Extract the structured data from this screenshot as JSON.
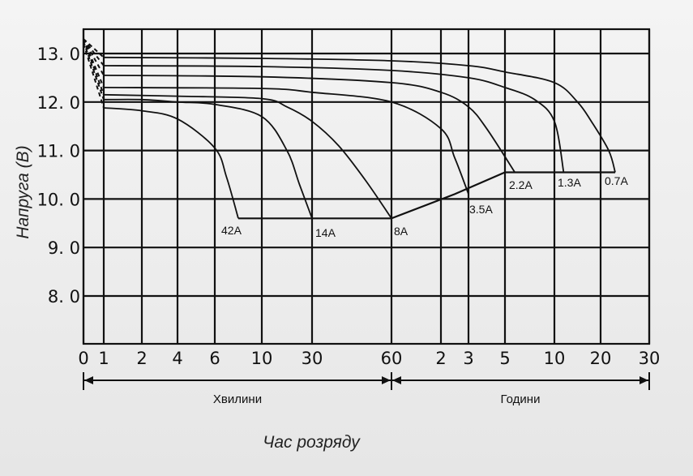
{
  "chart_data": {
    "type": "line",
    "ylabel": "Напруга (В)",
    "xlabel": "Час розряду",
    "ylim": [
      7.0,
      13.5
    ],
    "y_ticks": [
      "13. 0",
      "12. 0",
      "11. 0",
      "10. 0",
      "9. 0",
      "8. 0"
    ],
    "x_ticks": [
      "0",
      "1",
      "2",
      "4",
      "6",
      "10",
      "30",
      "60",
      "2",
      "3",
      "5",
      "10",
      "20",
      "30"
    ],
    "x_segments": [
      {
        "label": "Хвилини",
        "unit": "min",
        "range": [
          0,
          60
        ]
      },
      {
        "label": "Години",
        "unit": "h",
        "range": [
          1,
          30
        ]
      }
    ],
    "grid": true,
    "series": [
      {
        "name": "42A",
        "points": [
          [
            0,
            13.2
          ],
          [
            1,
            11.88
          ],
          [
            2,
            11.82
          ],
          [
            4,
            11.65
          ],
          [
            6,
            11.05
          ],
          [
            7,
            10.45
          ],
          [
            8,
            9.6
          ]
        ],
        "cutoff": 9.6
      },
      {
        "name": "14A",
        "points": [
          [
            0,
            13.25
          ],
          [
            1,
            12.05
          ],
          [
            2,
            12.05
          ],
          [
            4,
            12.0
          ],
          [
            6,
            11.95
          ],
          [
            10,
            11.7
          ],
          [
            20,
            11.0
          ],
          [
            25,
            10.3
          ],
          [
            30,
            9.6
          ]
        ],
        "cutoff": 9.6
      },
      {
        "name": "8A",
        "points": [
          [
            0,
            13.3
          ],
          [
            1,
            12.15
          ],
          [
            4,
            12.12
          ],
          [
            10,
            12.07
          ],
          [
            20,
            11.9
          ],
          [
            30,
            11.6
          ],
          [
            40,
            11.1
          ],
          [
            50,
            10.4
          ],
          [
            60,
            9.6
          ]
        ],
        "cutoff": 9.6
      },
      {
        "name": "3.5A",
        "points": [
          [
            0,
            13.3
          ],
          [
            1,
            12.3
          ],
          [
            10,
            12.28
          ],
          [
            30,
            12.2
          ],
          [
            60,
            12.0
          ],
          [
            120,
            11.45
          ],
          [
            150,
            10.85
          ],
          [
            180,
            10.1
          ]
        ],
        "cutoff": 10.1
      },
      {
        "name": "2.2A",
        "points": [
          [
            0,
            13.3
          ],
          [
            1,
            12.55
          ],
          [
            10,
            12.52
          ],
          [
            60,
            12.4
          ],
          [
            120,
            12.2
          ],
          [
            180,
            11.9
          ],
          [
            240,
            11.45
          ],
          [
            360,
            10.55
          ]
        ],
        "cutoff": 10.55
      },
      {
        "name": "1.3A",
        "points": [
          [
            0,
            13.3
          ],
          [
            1,
            12.75
          ],
          [
            10,
            12.73
          ],
          [
            60,
            12.65
          ],
          [
            180,
            12.5
          ],
          [
            300,
            12.3
          ],
          [
            480,
            12.05
          ],
          [
            600,
            11.6
          ],
          [
            720,
            10.55
          ]
        ],
        "cutoff": 10.55
      },
      {
        "name": "0.7A",
        "points": [
          [
            0,
            13.3
          ],
          [
            1,
            12.92
          ],
          [
            10,
            12.9
          ],
          [
            60,
            12.85
          ],
          [
            180,
            12.75
          ],
          [
            300,
            12.62
          ],
          [
            600,
            12.4
          ],
          [
            900,
            12.0
          ],
          [
            1080,
            11.6
          ],
          [
            1300,
            11.0
          ],
          [
            1380,
            10.55
          ]
        ],
        "cutoff": 10.55
      }
    ],
    "cutoff_line": [
      [
        8,
        9.6
      ],
      [
        60,
        9.6
      ],
      [
        150,
        10.1
      ],
      [
        300,
        10.55
      ],
      [
        1380,
        10.55
      ]
    ]
  }
}
